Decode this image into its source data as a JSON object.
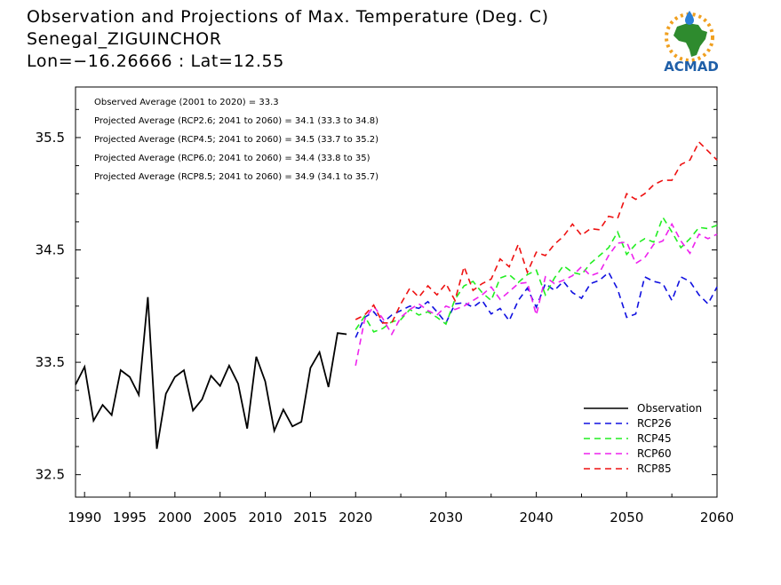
{
  "header": {
    "title_line1": "Observation and Projections of Max. Temperature (Deg. C)",
    "title_line2": "Senegal_ZIGUINCHOR",
    "title_line3": "Lon=−16.26666 : Lat=12.55"
  },
  "logo": {
    "text": "ACMAD",
    "colors": {
      "africa": "#2e8b2e",
      "text": "#1f5fa8",
      "sun": "#f0a020",
      "drop": "#2a7fd6"
    }
  },
  "chart_data": {
    "type": "line",
    "xlim": [
      1989,
      2060
    ],
    "ylim": [
      32.3,
      35.95
    ],
    "x_ticks": [
      1990,
      1995,
      2000,
      2005,
      2010,
      2015,
      2020,
      2030,
      2040,
      2050,
      2060
    ],
    "y_ticks": [
      32.5,
      33.5,
      34.5,
      35.5
    ],
    "grid": false,
    "legend_position": "bottom-right",
    "annotations": [
      "Observed Average (2001 to 2020) = 33.3",
      "Projected Average (RCP2.6; 2041 to 2060) = 34.1 (33.3 to 34.8)",
      "Projected Average (RCP4.5; 2041 to 2060) = 34.5 (33.7 to 35.2)",
      "Projected Average (RCP6.0; 2041 to 2060) = 34.4 (33.8 to 35)",
      "Projected Average (RCP8.5; 2041 to 2060) = 34.9 (34.1 to 35.7)"
    ],
    "series": [
      {
        "name": "Observation",
        "color": "#000000",
        "dashed": false,
        "x": [
          1989,
          1990,
          1991,
          1992,
          1993,
          1994,
          1995,
          1996,
          1997,
          1998,
          1999,
          2000,
          2001,
          2002,
          2003,
          2004,
          2005,
          2006,
          2007,
          2008,
          2009,
          2010,
          2011,
          2012,
          2013,
          2014,
          2015,
          2016,
          2017,
          2018,
          2019
        ],
        "values": [
          33.3,
          33.46,
          32.98,
          33.12,
          33.03,
          33.43,
          33.37,
          33.21,
          34.08,
          32.73,
          33.22,
          33.37,
          33.43,
          33.07,
          33.17,
          33.38,
          33.29,
          33.47,
          33.31,
          32.91,
          33.55,
          33.33,
          32.89,
          33.08,
          32.93,
          32.97,
          33.45,
          33.59,
          33.28,
          33.76,
          33.75
        ]
      },
      {
        "name": "RCP26",
        "color": "#1010e0",
        "dashed": true,
        "x": [
          2020,
          2021,
          2022,
          2023,
          2024,
          2025,
          2026,
          2027,
          2028,
          2029,
          2030,
          2031,
          2032,
          2033,
          2034,
          2035,
          2036,
          2037,
          2038,
          2039,
          2040,
          2041,
          2042,
          2043,
          2044,
          2045,
          2046,
          2047,
          2048,
          2049,
          2050,
          2051,
          2052,
          2053,
          2054,
          2055,
          2056,
          2057,
          2058,
          2059,
          2060
        ],
        "values": [
          33.72,
          33.9,
          33.95,
          33.85,
          33.92,
          33.96,
          34.0,
          33.98,
          34.04,
          33.95,
          33.85,
          34.02,
          34.03,
          33.99,
          34.05,
          33.93,
          33.98,
          33.87,
          34.05,
          34.16,
          33.99,
          34.2,
          34.14,
          34.22,
          34.12,
          34.07,
          34.2,
          34.23,
          34.3,
          34.15,
          33.9,
          33.93,
          34.26,
          34.22,
          34.2,
          34.05,
          34.26,
          34.22,
          34.1,
          34.02,
          34.17
        ]
      },
      {
        "name": "RCP45",
        "color": "#22ee22",
        "dashed": true,
        "x": [
          2020,
          2021,
          2022,
          2023,
          2024,
          2025,
          2026,
          2027,
          2028,
          2029,
          2030,
          2031,
          2032,
          2033,
          2034,
          2035,
          2036,
          2037,
          2038,
          2039,
          2040,
          2041,
          2042,
          2043,
          2044,
          2045,
          2046,
          2047,
          2048,
          2049,
          2050,
          2051,
          2052,
          2053,
          2054,
          2055,
          2056,
          2057,
          2058,
          2059,
          2060
        ],
        "values": [
          33.79,
          33.91,
          33.77,
          33.8,
          33.86,
          33.88,
          33.97,
          33.92,
          33.95,
          33.9,
          33.84,
          34.06,
          34.18,
          34.22,
          34.12,
          34.05,
          34.25,
          34.28,
          34.21,
          34.28,
          34.32,
          34.1,
          34.25,
          34.36,
          34.3,
          34.28,
          34.38,
          34.45,
          34.52,
          34.66,
          34.46,
          34.55,
          34.6,
          34.57,
          34.79,
          34.66,
          34.52,
          34.6,
          34.7,
          34.69,
          34.72
        ]
      },
      {
        "name": "RCP60",
        "color": "#ee22ee",
        "dashed": true,
        "x": [
          2020,
          2021,
          2022,
          2023,
          2024,
          2025,
          2026,
          2027,
          2028,
          2029,
          2030,
          2031,
          2032,
          2033,
          2034,
          2035,
          2036,
          2037,
          2038,
          2039,
          2040,
          2041,
          2042,
          2043,
          2044,
          2045,
          2046,
          2047,
          2048,
          2049,
          2050,
          2051,
          2052,
          2053,
          2054,
          2055,
          2056,
          2057,
          2058,
          2059,
          2060
        ],
        "values": [
          33.47,
          33.88,
          34.0,
          33.89,
          33.75,
          33.9,
          33.97,
          34.02,
          33.96,
          33.92,
          34.0,
          33.97,
          34.0,
          34.05,
          34.1,
          34.17,
          34.06,
          34.13,
          34.2,
          34.21,
          33.92,
          34.26,
          34.2,
          34.23,
          34.27,
          34.35,
          34.27,
          34.3,
          34.45,
          34.56,
          34.57,
          34.38,
          34.43,
          34.55,
          34.58,
          34.73,
          34.58,
          34.47,
          34.64,
          34.6,
          34.64
        ]
      },
      {
        "name": "RCP85",
        "color": "#ee1111",
        "dashed": true,
        "x": [
          2020,
          2021,
          2022,
          2023,
          2024,
          2025,
          2026,
          2027,
          2028,
          2029,
          2030,
          2031,
          2032,
          2033,
          2034,
          2035,
          2036,
          2037,
          2038,
          2039,
          2040,
          2041,
          2042,
          2043,
          2044,
          2045,
          2046,
          2047,
          2048,
          2049,
          2050,
          2051,
          2052,
          2053,
          2054,
          2055,
          2056,
          2057,
          2058,
          2059,
          2060
        ],
        "values": [
          33.88,
          33.92,
          34.01,
          33.85,
          33.85,
          34.02,
          34.16,
          34.08,
          34.18,
          34.1,
          34.2,
          34.05,
          34.35,
          34.14,
          34.2,
          34.24,
          34.42,
          34.35,
          34.55,
          34.3,
          34.48,
          34.45,
          34.55,
          34.62,
          34.73,
          34.63,
          34.69,
          34.68,
          34.8,
          34.78,
          35.0,
          34.95,
          35.0,
          35.08,
          35.12,
          35.12,
          35.26,
          35.3,
          35.46,
          35.38,
          35.3
        ]
      }
    ]
  }
}
